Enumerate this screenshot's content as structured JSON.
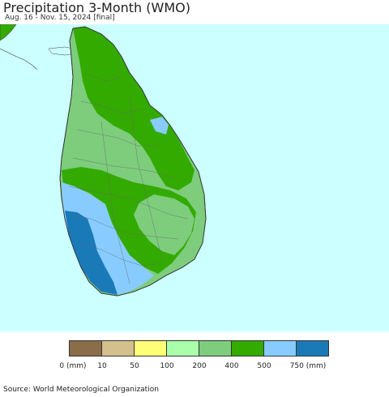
{
  "header": {
    "title": "Precipitation 3-Month (WMO)",
    "subtitle": "Aug. 16 - Nov. 15, 2024 [final]"
  },
  "map": {
    "ocean_color": "#ccffff",
    "region_colors": {
      "green_dark": "#33aa00",
      "green_mid": "#7dcd7d",
      "blue_light": "#88ccff",
      "blue_dark": "#1a7ab8",
      "green_light": "#aaffaa"
    }
  },
  "legend": {
    "colors": [
      "#8b6d4a",
      "#d4c08c",
      "#ffff77",
      "#aaffaa",
      "#7dcd7d",
      "#33aa00",
      "#88ccff",
      "#1a7ab8"
    ],
    "labels": [
      "0 (mm)",
      "10",
      "50",
      "100",
      "200",
      "400",
      "500",
      "750 (mm)"
    ]
  },
  "footer": {
    "source": "Source: World Meteorological Organization"
  }
}
